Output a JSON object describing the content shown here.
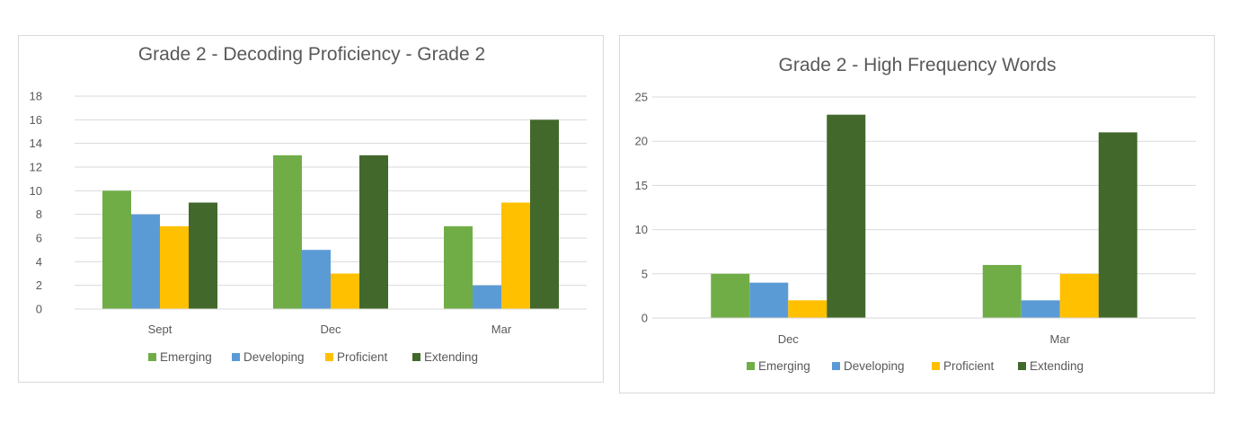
{
  "chart_data": [
    {
      "type": "bar",
      "title": "Grade 2 - Decoding Proficiency - Grade 2",
      "categories": [
        "Sept",
        "Dec",
        "Mar"
      ],
      "series": [
        {
          "name": "Emerging",
          "color": "#70ad47",
          "values": [
            10,
            13,
            7
          ]
        },
        {
          "name": "Developing",
          "color": "#5b9bd5",
          "values": [
            8,
            5,
            2
          ]
        },
        {
          "name": "Proficient",
          "color": "#ffc000",
          "values": [
            7,
            3,
            9
          ]
        },
        {
          "name": "Extending",
          "color": "#43682b",
          "values": [
            9,
            13,
            16
          ]
        }
      ],
      "ylim": [
        0,
        18
      ],
      "yticks": [
        0,
        2,
        4,
        6,
        8,
        10,
        12,
        14,
        16,
        18
      ],
      "xlabel": "",
      "ylabel": "",
      "grid": true,
      "legend": "bottom"
    },
    {
      "type": "bar",
      "title": "Grade 2 - High Frequency Words",
      "categories": [
        "Dec",
        "Mar"
      ],
      "series": [
        {
          "name": "Emerging",
          "color": "#70ad47",
          "values": [
            5,
            6
          ]
        },
        {
          "name": "Developing",
          "color": "#5b9bd5",
          "values": [
            4,
            2
          ]
        },
        {
          "name": "Proficient",
          "color": "#ffc000",
          "values": [
            2,
            5
          ]
        },
        {
          "name": "Extending",
          "color": "#43682b",
          "values": [
            23,
            21
          ]
        }
      ],
      "ylim": [
        0,
        25
      ],
      "yticks": [
        0,
        5,
        10,
        15,
        20,
        25
      ],
      "xlabel": "",
      "ylabel": "",
      "grid": true,
      "legend": "bottom"
    }
  ]
}
